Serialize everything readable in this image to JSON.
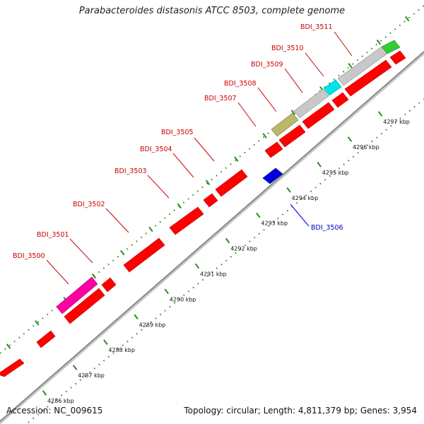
{
  "title": "Parabacteroides distasonis ATCC 8503, complete genome",
  "footer": {
    "accession": "Accession: NC_009615",
    "summary": "Topology: circular; Length: 4,811,379 bp; Genes: 3,954"
  },
  "colors": {
    "background": "#ffffff",
    "backbone": "#888888",
    "gene_default": "#ff0000",
    "gene_minus": "#0000e0",
    "label_plus": "#cc0000",
    "label_minus": "#0000cc",
    "tick_major": "#2e8b22",
    "dotted_track": "#2e8b22"
  },
  "ticks": [
    {
      "label": "4286 kbp"
    },
    {
      "label": "4287 kbp"
    },
    {
      "label": "4288 kbp"
    },
    {
      "label": "4289 kbp"
    },
    {
      "label": "4290 kbp"
    },
    {
      "label": "4291 kbp"
    },
    {
      "label": "4292 kbp"
    },
    {
      "label": "4293 kbp"
    },
    {
      "label": "4294 kbp"
    },
    {
      "label": "4295 kbp"
    },
    {
      "label": "4296 kbp"
    },
    {
      "label": "4297 kbp"
    }
  ],
  "gene_labels": [
    {
      "name": "BDI_3500",
      "strand": "+"
    },
    {
      "name": "BDI_3501",
      "strand": "+"
    },
    {
      "name": "BDI_3502",
      "strand": "+"
    },
    {
      "name": "BDI_3503",
      "strand": "+"
    },
    {
      "name": "BDI_3504",
      "strand": "+"
    },
    {
      "name": "BDI_3505",
      "strand": "+"
    },
    {
      "name": "BDI_3507",
      "strand": "+"
    },
    {
      "name": "BDI_3508",
      "strand": "+"
    },
    {
      "name": "BDI_3509",
      "strand": "+"
    },
    {
      "name": "BDI_3510",
      "strand": "+"
    },
    {
      "name": "BDI_3511",
      "strand": "+"
    },
    {
      "name": "BDI_3506",
      "strand": "-"
    }
  ]
}
